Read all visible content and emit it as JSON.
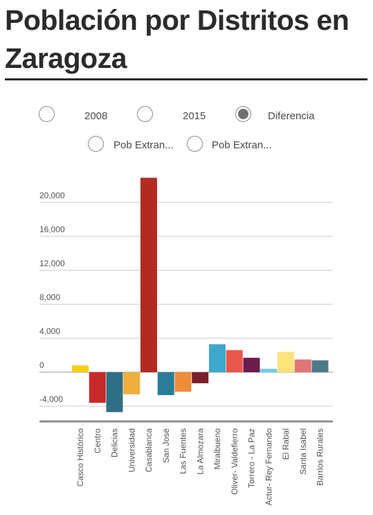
{
  "title": "Población por Distritos en Zaragoza",
  "options": {
    "selected": "Diferencia",
    "items": [
      {
        "label": "2008",
        "checked": false
      },
      {
        "label": "2015",
        "checked": false
      },
      {
        "label": "Diferencia",
        "checked": true
      },
      {
        "label": "Pob Extran...",
        "checked": false
      },
      {
        "label": "Pob Extran...",
        "checked": false
      }
    ]
  },
  "chart_data": {
    "type": "bar",
    "title": "",
    "xlabel": "",
    "ylabel": "",
    "ylim": [
      -5500,
      23200
    ],
    "yticks": [
      -4000,
      0,
      4000,
      8000,
      12000,
      16000,
      20000
    ],
    "ytick_labels": [
      "-4,000",
      "0",
      "4,000",
      "8,000",
      "12,000",
      "16,000",
      "20,000"
    ],
    "grid": true,
    "categories": [
      "Casco Histórico",
      "Centro",
      "Delicias",
      "Universidad",
      "Casablanca",
      "San José",
      "Las Fuentes",
      "La Almozara",
      "Miralbueno",
      "Oliver- Valdefierro",
      "Torrero - La Paz",
      "Actur- Rey Fernando",
      "El Rabal",
      "Santa Isabel",
      "Barrios Rurales"
    ],
    "values": [
      800,
      -3600,
      -4700,
      -2600,
      22900,
      -2700,
      -2300,
      -1300,
      3300,
      2600,
      1700,
      400,
      2400,
      1500,
      1400
    ],
    "colors": [
      "#f6cf13",
      "#c62a2a",
      "#2f6f85",
      "#eeaf3d",
      "#b22b23",
      "#2b7c98",
      "#ef8c3a",
      "#7a1f2e",
      "#3ea8cc",
      "#e8574a",
      "#6a1c4a",
      "#6fcbe8",
      "#fde37a",
      "#e07575",
      "#4c7a86"
    ]
  }
}
